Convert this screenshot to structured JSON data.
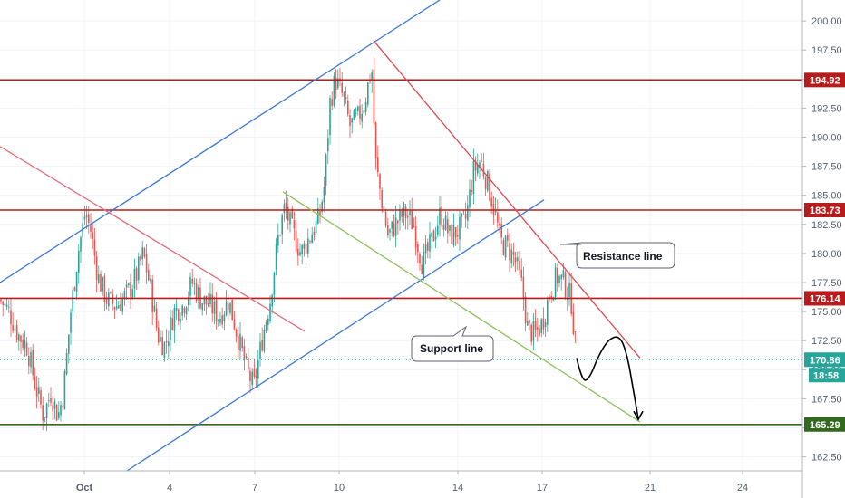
{
  "chart_data": {
    "type": "candlestick",
    "x_tick_labels": [
      "Oct",
      "4",
      "7",
      "10",
      "14",
      "17",
      "21",
      "24"
    ],
    "y_ticks": [
      162.5,
      165.0,
      167.5,
      170.0,
      172.5,
      175.0,
      177.5,
      180.0,
      182.5,
      185.0,
      187.5,
      190.0,
      192.5,
      195.0,
      197.5,
      200.0
    ],
    "ylim": [
      161.3,
      201.8
    ],
    "grid": true,
    "colors": {
      "up": "#26a69a",
      "down": "#ef5350",
      "channel": "#3a78d4",
      "downtrend": "#e06b78",
      "resistance": "#e0484f",
      "support": "#8fbf5a",
      "level_red": "#b71c1c",
      "level_green": "#33691e",
      "current": "#26a69a"
    },
    "horizontal_levels": [
      {
        "value": 194.92,
        "label": "194.92",
        "color": "#b71c1c"
      },
      {
        "value": 183.73,
        "label": "183.73",
        "color": "#b71c1c"
      },
      {
        "value": 176.14,
        "label": "176.14",
        "color": "#b71c1c"
      },
      {
        "value": 165.29,
        "label": "165.29",
        "color": "#33691e"
      }
    ],
    "current_price": {
      "value": 170.86,
      "label": "170.86",
      "countdown": "18:58"
    },
    "annotations": {
      "resistance": "Resistance line",
      "support": "Support line"
    },
    "price_path": [
      {
        "x": 0,
        "y": 176.0
      },
      {
        "x": 10,
        "y": 175.0
      },
      {
        "x": 20,
        "y": 173.0
      },
      {
        "x": 30,
        "y": 172.0
      },
      {
        "x": 38,
        "y": 169.0
      },
      {
        "x": 48,
        "y": 166.0
      },
      {
        "x": 56,
        "y": 168.0
      },
      {
        "x": 64,
        "y": 166.0
      },
      {
        "x": 70,
        "y": 168.0
      },
      {
        "x": 78,
        "y": 175.0
      },
      {
        "x": 86,
        "y": 180.0
      },
      {
        "x": 94,
        "y": 183.5
      },
      {
        "x": 100,
        "y": 182.0
      },
      {
        "x": 108,
        "y": 178.0
      },
      {
        "x": 118,
        "y": 176.0
      },
      {
        "x": 128,
        "y": 175.5
      },
      {
        "x": 140,
        "y": 176.5
      },
      {
        "x": 150,
        "y": 178.0
      },
      {
        "x": 158,
        "y": 180.0
      },
      {
        "x": 166,
        "y": 177.0
      },
      {
        "x": 174,
        "y": 173.0
      },
      {
        "x": 182,
        "y": 172.0
      },
      {
        "x": 192,
        "y": 175.0
      },
      {
        "x": 202,
        "y": 175.5
      },
      {
        "x": 212,
        "y": 177.5
      },
      {
        "x": 222,
        "y": 176.0
      },
      {
        "x": 232,
        "y": 175.5
      },
      {
        "x": 242,
        "y": 174.5
      },
      {
        "x": 252,
        "y": 176.0
      },
      {
        "x": 262,
        "y": 173.0
      },
      {
        "x": 272,
        "y": 170.0
      },
      {
        "x": 280,
        "y": 168.5
      },
      {
        "x": 290,
        "y": 173.0
      },
      {
        "x": 298,
        "y": 176.0
      },
      {
        "x": 306,
        "y": 181.0
      },
      {
        "x": 314,
        "y": 184.0
      },
      {
        "x": 322,
        "y": 182.0
      },
      {
        "x": 332,
        "y": 180.0
      },
      {
        "x": 342,
        "y": 181.5
      },
      {
        "x": 352,
        "y": 183.0
      },
      {
        "x": 358,
        "y": 186.0
      },
      {
        "x": 364,
        "y": 193.0
      },
      {
        "x": 370,
        "y": 195.0
      },
      {
        "x": 378,
        "y": 193.5
      },
      {
        "x": 386,
        "y": 191.0
      },
      {
        "x": 394,
        "y": 191.5
      },
      {
        "x": 402,
        "y": 193.0
      },
      {
        "x": 410,
        "y": 196.0
      },
      {
        "x": 414,
        "y": 188.0
      },
      {
        "x": 420,
        "y": 185.0
      },
      {
        "x": 428,
        "y": 181.5
      },
      {
        "x": 436,
        "y": 182.5
      },
      {
        "x": 446,
        "y": 183.5
      },
      {
        "x": 456,
        "y": 182.5
      },
      {
        "x": 466,
        "y": 179.0
      },
      {
        "x": 476,
        "y": 181.0
      },
      {
        "x": 486,
        "y": 183.5
      },
      {
        "x": 496,
        "y": 181.5
      },
      {
        "x": 506,
        "y": 182.0
      },
      {
        "x": 514,
        "y": 183.0
      },
      {
        "x": 522,
        "y": 187.0
      },
      {
        "x": 530,
        "y": 188.0
      },
      {
        "x": 538,
        "y": 186.0
      },
      {
        "x": 546,
        "y": 183.5
      },
      {
        "x": 552,
        "y": 181.0
      },
      {
        "x": 560,
        "y": 180.5
      },
      {
        "x": 568,
        "y": 179.5
      },
      {
        "x": 576,
        "y": 177.0
      },
      {
        "x": 582,
        "y": 173.5
      },
      {
        "x": 590,
        "y": 173.0
      },
      {
        "x": 598,
        "y": 174.0
      },
      {
        "x": 606,
        "y": 176.5
      },
      {
        "x": 614,
        "y": 178.0
      },
      {
        "x": 622,
        "y": 177.5
      },
      {
        "x": 630,
        "y": 176.0
      },
      {
        "x": 636,
        "y": 171.0
      }
    ],
    "trend_lines": [
      {
        "name": "upper-channel",
        "x1": 0,
        "y1": 177.5,
        "x2": 485,
        "y2": 201.8,
        "color": "#3a78d4"
      },
      {
        "name": "lower-channel",
        "x1": 140,
        "y1": 161.3,
        "x2": 600,
        "y2": 184.6,
        "color": "#3a78d4"
      },
      {
        "name": "early-downtrend",
        "x1": 0,
        "y1": 189.2,
        "x2": 336,
        "y2": 173.3,
        "color": "#e06b78"
      },
      {
        "name": "resistance",
        "x1": 412,
        "y1": 198.3,
        "x2": 706,
        "y2": 171.0,
        "color": "#e0484f"
      },
      {
        "name": "support",
        "x1": 312,
        "y1": 185.3,
        "x2": 706,
        "y2": 165.5,
        "color": "#8fbf5a"
      }
    ],
    "projection": [
      {
        "x": 636,
        "y": 171.0
      },
      {
        "x": 642,
        "y": 169.0
      },
      {
        "x": 650,
        "y": 169.2
      },
      {
        "x": 660,
        "y": 171.2
      },
      {
        "x": 672,
        "y": 172.7
      },
      {
        "x": 684,
        "y": 172.9
      },
      {
        "x": 692,
        "y": 171.2
      },
      {
        "x": 698,
        "y": 168.5
      },
      {
        "x": 704,
        "y": 165.8
      }
    ]
  }
}
